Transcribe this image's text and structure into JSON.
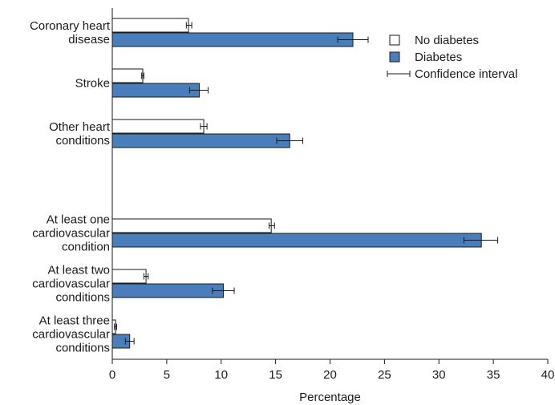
{
  "chart_data": {
    "type": "bar",
    "orientation": "horizontal",
    "categories": [
      [
        "Coronary heart",
        "disease"
      ],
      [
        "Stroke"
      ],
      [
        "Other heart",
        "conditions"
      ],
      [
        "At least one",
        "cardiovascular",
        "condition"
      ],
      [
        "At least two",
        "cardiovascular",
        "conditions"
      ],
      [
        "At least three",
        "cardiovascular",
        "conditions"
      ]
    ],
    "series": [
      {
        "name": "No diabetes",
        "color": "#ffffff",
        "values": [
          7.0,
          2.8,
          8.4,
          14.6,
          3.1,
          0.3
        ],
        "ci_low": [
          6.8,
          2.7,
          8.1,
          14.4,
          2.9,
          0.2
        ],
        "ci_high": [
          7.3,
          2.9,
          8.7,
          14.9,
          3.3,
          0.4
        ]
      },
      {
        "name": "Diabetes",
        "color": "#4a7ebb",
        "values": [
          22.1,
          8.0,
          16.3,
          33.9,
          10.2,
          1.6
        ],
        "ci_low": [
          20.7,
          7.1,
          15.1,
          32.3,
          9.2,
          1.2
        ],
        "ci_high": [
          23.5,
          8.8,
          17.5,
          35.4,
          11.2,
          2.0
        ]
      }
    ],
    "xlabel": "Percentage",
    "ylabel": "",
    "xlim": [
      0,
      40
    ],
    "xticks": [
      0,
      5,
      10,
      15,
      20,
      25,
      30,
      35,
      40
    ],
    "legend": {
      "placement": "top-right",
      "entries": [
        "No diabetes",
        "Diabetes",
        "Confidence interval"
      ]
    },
    "grid": false
  }
}
